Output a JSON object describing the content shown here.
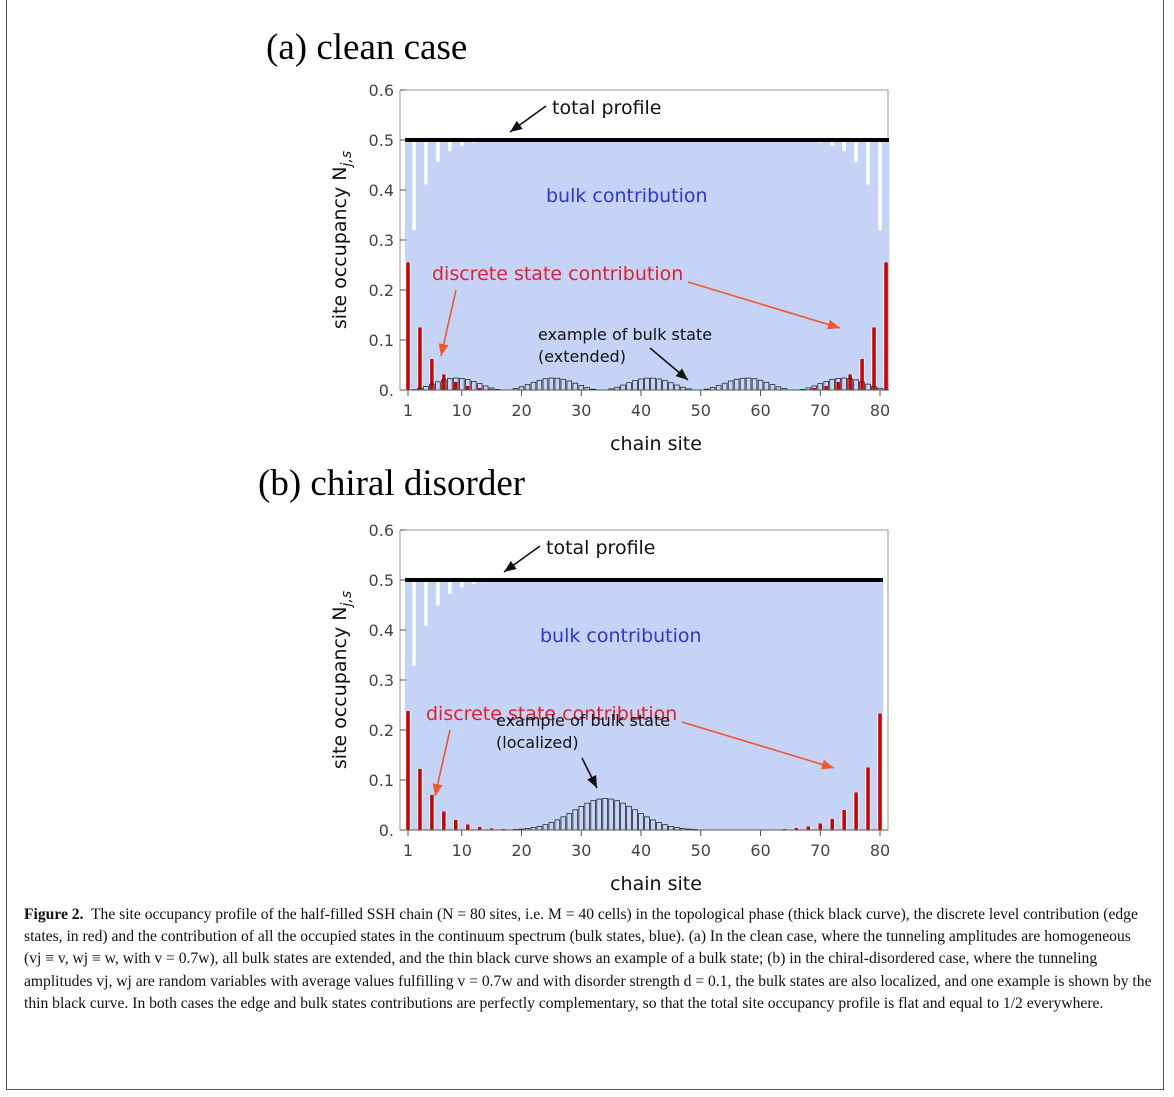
{
  "figure": {
    "caption_label": "Figure 2.",
    "caption_text": "The site occupancy profile of the half-filled SSH chain (N = 80 sites, i.e. M = 40 cells) in the topological phase (thick black curve), the discrete level contribution (edge states, in red) and the contribution of all the occupied states in the continuum spectrum (bulk states, blue). (a) In the clean case, where the tunneling amplitudes are homogeneous (vj ≡ v, wj ≡ w, with v = 0.7w), all bulk states are extended, and the thin black curve shows an example of a bulk state; (b) in the chiral-disordered case, where the tunneling amplitudes vj, wj are random variables with average values fulfilling v = 0.7w and with disorder strength d = 0.1, the bulk states are also localized, and one example is shown by the thin black curve. In both cases the edge and bulk states contributions are perfectly complementary, so that the total site occupancy profile is flat and equal to 1/2 everywhere."
  },
  "colors": {
    "bulk": "#c5d3f7",
    "edge": "#d10000",
    "total": "#000000",
    "bulk_text": "#2a36d6",
    "edge_text": "#e0202a",
    "arrow_edge": "#f0562a"
  },
  "chart_data": [
    {
      "type": "bar",
      "panel_title": "(a)  clean case",
      "xlabel": "chain site",
      "ylabel": "site occupancy N",
      "ylabel_sub": "j,s",
      "xlim": [
        1,
        80
      ],
      "ylim": [
        0,
        0.6
      ],
      "xticks": [
        1,
        10,
        20,
        30,
        40,
        50,
        60,
        70,
        80
      ],
      "yticks": [
        0,
        0.1,
        0.2,
        0.3,
        0.4,
        0.5,
        0.6
      ],
      "ytick_labels": [
        "0.",
        "0.1",
        "0.2",
        "0.3",
        "0.4",
        "0.5",
        "0.6"
      ],
      "total_profile": 0.5,
      "edge_values": [
        0.255,
        0,
        0.125,
        0,
        0.062,
        0,
        0.031,
        0,
        0.016,
        0,
        0.008,
        0,
        0.004,
        0,
        0.002,
        0,
        0.001,
        0,
        0.0005,
        0,
        0.0003,
        0,
        0.0001,
        0,
        0,
        0,
        0,
        0,
        0,
        0,
        0,
        0,
        0,
        0,
        0,
        0,
        0,
        0,
        0,
        0,
        0,
        0,
        0,
        0,
        0,
        0,
        0,
        0,
        0,
        0,
        0,
        0,
        0,
        0,
        0,
        0,
        0,
        0,
        0.0001,
        0,
        0.0003,
        0,
        0.0005,
        0,
        0.001,
        0,
        0.002,
        0,
        0.004,
        0,
        0.008,
        0,
        0.016,
        0,
        0.031,
        0,
        0.062,
        0,
        0.125,
        0,
        0.255
      ],
      "bulk_state": {
        "kind": "extended",
        "amplitude": 0.024,
        "period": 16.2,
        "offset": 1
      },
      "annotations": {
        "total": "total profile",
        "bulk": "bulk contribution",
        "edge": "discrete state contribution",
        "example_line1": "example of bulk state",
        "example_line2": "(extended)"
      }
    },
    {
      "type": "bar",
      "panel_title": "(b)  chiral disorder",
      "xlabel": "chain site",
      "ylabel": "site occupancy N",
      "ylabel_sub": "j,s",
      "xlim": [
        1,
        80
      ],
      "ylim": [
        0,
        0.6
      ],
      "xticks": [
        1,
        10,
        20,
        30,
        40,
        50,
        60,
        70,
        80
      ],
      "yticks": [
        0,
        0.1,
        0.2,
        0.3,
        0.4,
        0.5,
        0.6
      ],
      "ytick_labels": [
        "0.",
        "0.1",
        "0.2",
        "0.3",
        "0.4",
        "0.5",
        "0.6"
      ],
      "total_profile": 0.5,
      "edge_values": [
        0.238,
        0,
        0.122,
        0,
        0.07,
        0,
        0.037,
        0,
        0.02,
        0,
        0.011,
        0,
        0.006,
        0,
        0.003,
        0,
        0.002,
        0,
        0.001,
        0,
        0.0005,
        0,
        0.0003,
        0,
        0.0002,
        0,
        0.0001,
        0,
        0,
        0,
        0,
        0,
        0,
        0,
        0,
        0,
        0,
        0,
        0,
        0,
        0,
        0,
        0,
        0,
        0,
        0,
        0,
        0,
        0,
        0,
        0,
        0,
        0,
        0,
        0,
        0.0001,
        0,
        0.0002,
        0,
        0.0005,
        0,
        0.001,
        0,
        0.002,
        0,
        0.004,
        0,
        0.007,
        0,
        0.013,
        0,
        0.022,
        0,
        0.04,
        0,
        0.075,
        0,
        0.125,
        0,
        0.233
      ],
      "bulk_state": {
        "kind": "localized",
        "amplitude": 0.063,
        "center": 34,
        "width": 7.5
      },
      "annotations": {
        "total": "total profile",
        "bulk": "bulk contribution",
        "edge": "discrete state contribution",
        "example_line1": "example of bulk state",
        "example_line2": "(localized)"
      }
    }
  ]
}
